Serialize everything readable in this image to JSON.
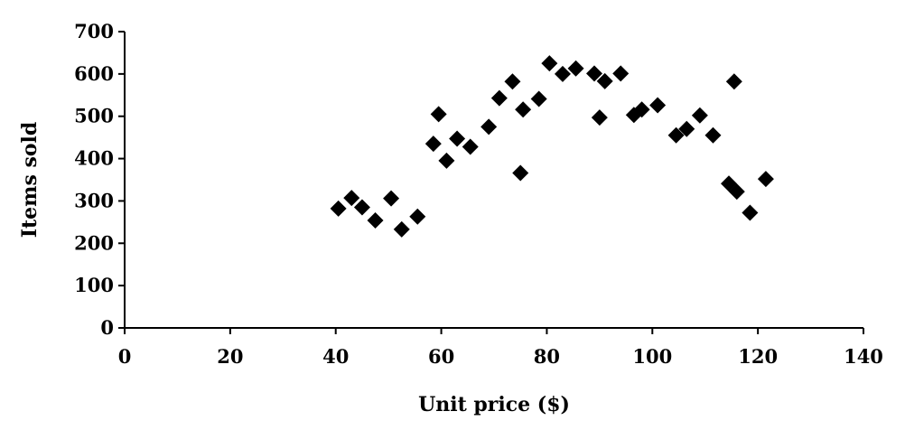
{
  "chart_data": {
    "type": "scatter",
    "xlabel": "Unit price ($)",
    "ylabel": "Items sold",
    "xlim": [
      0,
      140
    ],
    "ylim": [
      0,
      700
    ],
    "x_ticks": [
      0,
      20,
      40,
      60,
      80,
      100,
      120,
      140
    ],
    "y_ticks": [
      0,
      100,
      200,
      300,
      400,
      500,
      600,
      700
    ],
    "grid": false,
    "legend": "none",
    "marker": "diamond",
    "marker_color": "#000000",
    "points": [
      {
        "x": 40.5,
        "y": 282
      },
      {
        "x": 43,
        "y": 307
      },
      {
        "x": 45,
        "y": 285
      },
      {
        "x": 47.5,
        "y": 254
      },
      {
        "x": 50.5,
        "y": 306
      },
      {
        "x": 52.5,
        "y": 233
      },
      {
        "x": 55.5,
        "y": 263
      },
      {
        "x": 58.5,
        "y": 435
      },
      {
        "x": 59.5,
        "y": 505
      },
      {
        "x": 61,
        "y": 395
      },
      {
        "x": 63,
        "y": 447
      },
      {
        "x": 65.5,
        "y": 428
      },
      {
        "x": 69,
        "y": 475
      },
      {
        "x": 71,
        "y": 543
      },
      {
        "x": 73.5,
        "y": 582
      },
      {
        "x": 75,
        "y": 366
      },
      {
        "x": 75.5,
        "y": 516
      },
      {
        "x": 78.5,
        "y": 541
      },
      {
        "x": 80.5,
        "y": 625
      },
      {
        "x": 83,
        "y": 600
      },
      {
        "x": 85.5,
        "y": 613
      },
      {
        "x": 89,
        "y": 601
      },
      {
        "x": 90,
        "y": 497
      },
      {
        "x": 91,
        "y": 583
      },
      {
        "x": 94,
        "y": 601
      },
      {
        "x": 96.5,
        "y": 503
      },
      {
        "x": 98,
        "y": 516
      },
      {
        "x": 101,
        "y": 526
      },
      {
        "x": 104.5,
        "y": 455
      },
      {
        "x": 106.5,
        "y": 470
      },
      {
        "x": 109,
        "y": 502
      },
      {
        "x": 111.5,
        "y": 455
      },
      {
        "x": 114.5,
        "y": 341
      },
      {
        "x": 115.5,
        "y": 582
      },
      {
        "x": 116,
        "y": 322
      },
      {
        "x": 118.5,
        "y": 272
      },
      {
        "x": 121.5,
        "y": 352
      }
    ]
  }
}
